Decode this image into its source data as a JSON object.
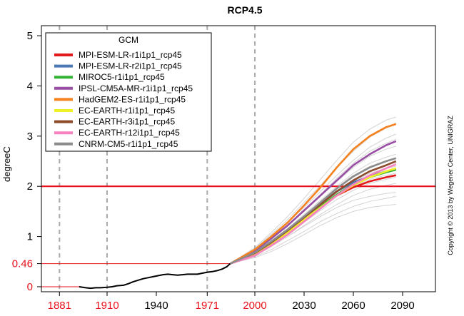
{
  "chart_data": {
    "type": "line",
    "title": "RCP4.5",
    "ylabel": "degreeC",
    "xlim": [
      1870,
      2110
    ],
    "ylim": [
      -0.1,
      5.2
    ],
    "x_ticks": [
      {
        "label": "1881",
        "value": 1881,
        "color": "#e8101a"
      },
      {
        "label": "1910",
        "value": 1910,
        "color": "#e8101a"
      },
      {
        "label": "1940",
        "value": 1940,
        "color": "#000000"
      },
      {
        "label": "1971",
        "value": 1971,
        "color": "#e8101a"
      },
      {
        "label": "2000",
        "value": 2000,
        "color": "#e8101a"
      },
      {
        "label": "2030",
        "value": 2030,
        "color": "#000000"
      },
      {
        "label": "2060",
        "value": 2060,
        "color": "#000000"
      },
      {
        "label": "2090",
        "value": 2090,
        "color": "#000000"
      }
    ],
    "y_ticks": [
      {
        "label": "0",
        "value": 0,
        "color": "#e8101a"
      },
      {
        "label": "0.46",
        "value": 0.46,
        "color": "#e8101a"
      },
      {
        "label": "1",
        "value": 1,
        "color": "#000000"
      },
      {
        "label": "2",
        "value": 2,
        "color": "#000000"
      },
      {
        "label": "3",
        "value": 3,
        "color": "#000000"
      },
      {
        "label": "4",
        "value": 4,
        "color": "#000000"
      },
      {
        "label": "5",
        "value": 5,
        "color": "#000000"
      }
    ],
    "vertical_dashed_lines": [
      1881,
      1910,
      1971,
      2000
    ],
    "horizontal_lines": [
      {
        "value": 0,
        "color": "#e8101a",
        "width": 1,
        "from": 1870,
        "to": 1895
      },
      {
        "value": 0.46,
        "color": "#e8101a",
        "width": 1,
        "from": 1870,
        "to": 1985
      },
      {
        "value": 2,
        "color": "#e8101a",
        "width": 2.2,
        "from": 1870,
        "to": 2110
      }
    ],
    "observed": {
      "color": "#000000",
      "x": [
        1893,
        1897,
        1900,
        1903,
        1906,
        1910,
        1913,
        1916,
        1920,
        1923,
        1926,
        1929,
        1932,
        1935,
        1938,
        1941,
        1944,
        1947,
        1950,
        1953,
        1956,
        1959,
        1962,
        1965,
        1968,
        1971,
        1974,
        1977,
        1980,
        1983,
        1985
      ],
      "values": [
        0.0,
        -0.02,
        -0.03,
        -0.02,
        -0.02,
        -0.01,
        0.0,
        0.02,
        0.03,
        0.06,
        0.1,
        0.13,
        0.16,
        0.18,
        0.2,
        0.22,
        0.24,
        0.25,
        0.24,
        0.23,
        0.24,
        0.25,
        0.25,
        0.25,
        0.27,
        0.29,
        0.3,
        0.32,
        0.35,
        0.4,
        0.46
      ]
    },
    "legend": {
      "title": "GCM",
      "placement": "top-left"
    },
    "series": [
      {
        "name": "MPI-ESM-LR-r1i1p1_rcp45",
        "color": "#e31a1c",
        "x": [
          1985,
          2000,
          2010,
          2020,
          2030,
          2040,
          2050,
          2060,
          2070,
          2080,
          2086
        ],
        "values": [
          0.46,
          0.66,
          0.86,
          1.08,
          1.35,
          1.6,
          1.82,
          1.98,
          2.1,
          2.18,
          2.22
        ]
      },
      {
        "name": "MPI-ESM-LR-r2i1p1_rcp45",
        "color": "#4a78b3",
        "x": [
          1985,
          2000,
          2010,
          2020,
          2030,
          2040,
          2050,
          2060,
          2070,
          2080,
          2086
        ],
        "values": [
          0.46,
          0.68,
          0.9,
          1.12,
          1.4,
          1.65,
          1.9,
          2.08,
          2.2,
          2.3,
          2.35
        ]
      },
      {
        "name": "MIROC5-r1i1p1_rcp45",
        "color": "#33b333",
        "x": [
          1985,
          2000,
          2010,
          2020,
          2030,
          2040,
          2050,
          2060,
          2070,
          2080,
          2086
        ],
        "values": [
          0.46,
          0.67,
          0.88,
          1.1,
          1.36,
          1.6,
          1.84,
          2.04,
          2.18,
          2.28,
          2.33
        ]
      },
      {
        "name": "IPSL-CM5A-MR-r1i1p1_rcp45",
        "color": "#984ea3",
        "x": [
          1985,
          2000,
          2010,
          2020,
          2030,
          2040,
          2050,
          2060,
          2070,
          2080,
          2086
        ],
        "values": [
          0.46,
          0.72,
          0.96,
          1.22,
          1.52,
          1.82,
          2.12,
          2.42,
          2.64,
          2.82,
          2.9
        ]
      },
      {
        "name": "HadGEM2-ES-r1i1p1_rcp45",
        "color": "#f58220",
        "x": [
          1985,
          2000,
          2010,
          2020,
          2030,
          2040,
          2050,
          2060,
          2070,
          2080,
          2086
        ],
        "values": [
          0.46,
          0.74,
          1.0,
          1.28,
          1.62,
          1.98,
          2.38,
          2.74,
          3.0,
          3.18,
          3.24
        ]
      },
      {
        "name": "EC-EARTH-r1i1p1_rcp45",
        "color": "#f0f02a",
        "x": [
          1985,
          2000,
          2010,
          2020,
          2030,
          2040,
          2050,
          2060,
          2070,
          2080,
          2086
        ],
        "values": [
          0.46,
          0.66,
          0.86,
          1.08,
          1.34,
          1.58,
          1.82,
          2.02,
          2.18,
          2.3,
          2.36
        ]
      },
      {
        "name": "EC-EARTH-r3i1p1_rcp45",
        "color": "#8c4b2a",
        "x": [
          1985,
          2000,
          2010,
          2020,
          2030,
          2040,
          2050,
          2060,
          2070,
          2080,
          2086
        ],
        "values": [
          0.46,
          0.67,
          0.88,
          1.12,
          1.38,
          1.64,
          1.9,
          2.12,
          2.3,
          2.42,
          2.5
        ]
      },
      {
        "name": "EC-EARTH-r12i1p1_rcp45",
        "color": "#f781bf",
        "x": [
          1985,
          2000,
          2010,
          2020,
          2030,
          2040,
          2050,
          2060,
          2070,
          2080,
          2086
        ],
        "values": [
          0.46,
          0.62,
          0.82,
          1.04,
          1.3,
          1.56,
          1.82,
          2.04,
          2.22,
          2.36,
          2.44
        ]
      },
      {
        "name": "CNRM-CM5-r1i1p1_rcp45",
        "color": "#8c8c8c",
        "x": [
          1985,
          2000,
          2010,
          2020,
          2030,
          2040,
          2050,
          2060,
          2070,
          2080,
          2086
        ],
        "values": [
          0.46,
          0.68,
          0.9,
          1.14,
          1.4,
          1.68,
          1.96,
          2.2,
          2.38,
          2.5,
          2.56
        ]
      }
    ],
    "ensemble_background": {
      "color": "#d3d3d3",
      "x": [
        1985,
        2000,
        2010,
        2020,
        2030,
        2040,
        2050,
        2060,
        2070,
        2080,
        2086
      ],
      "members": [
        [
          0.46,
          0.58,
          0.7,
          0.86,
          1.04,
          1.22,
          1.38,
          1.5,
          1.58,
          1.62,
          1.64
        ],
        [
          0.46,
          0.6,
          0.74,
          0.92,
          1.1,
          1.3,
          1.46,
          1.6,
          1.7,
          1.76,
          1.8
        ],
        [
          0.46,
          0.62,
          0.8,
          1.0,
          1.22,
          1.44,
          1.64,
          1.82,
          1.94,
          2.02,
          2.06
        ],
        [
          0.46,
          0.64,
          0.84,
          1.04,
          1.28,
          1.52,
          1.74,
          1.92,
          2.06,
          2.14,
          2.18
        ],
        [
          0.46,
          0.66,
          0.88,
          1.1,
          1.36,
          1.62,
          1.88,
          2.1,
          2.26,
          2.36,
          2.4
        ],
        [
          0.46,
          0.7,
          0.92,
          1.16,
          1.44,
          1.72,
          2.0,
          2.26,
          2.46,
          2.58,
          2.64
        ],
        [
          0.46,
          0.72,
          0.96,
          1.22,
          1.5,
          1.8,
          2.1,
          2.38,
          2.6,
          2.74,
          2.8
        ],
        [
          0.46,
          0.74,
          1.0,
          1.28,
          1.58,
          1.9,
          2.22,
          2.52,
          2.78,
          2.96,
          3.04
        ],
        [
          0.46,
          0.76,
          1.04,
          1.34,
          1.68,
          2.02,
          2.38,
          2.7,
          2.98,
          3.16,
          3.26
        ],
        [
          0.46,
          0.78,
          1.08,
          1.4,
          1.76,
          2.14,
          2.52,
          2.88,
          3.14,
          3.32,
          3.38
        ],
        [
          0.46,
          0.63,
          0.82,
          1.0,
          1.2,
          1.4,
          1.58,
          1.72,
          1.8,
          1.86,
          1.88
        ],
        [
          0.46,
          0.69,
          0.9,
          1.14,
          1.4,
          1.66,
          1.94,
          2.18,
          2.36,
          2.5,
          2.56
        ],
        [
          0.46,
          0.65,
          0.86,
          1.08,
          1.32,
          1.56,
          1.8,
          2.0,
          2.14,
          2.22,
          2.26
        ],
        [
          0.46,
          0.73,
          0.98,
          1.24,
          1.52,
          1.84,
          2.16,
          2.46,
          2.7,
          2.86,
          2.94
        ]
      ]
    }
  },
  "copyright": "Copyright © 2013 by Wegener Center, UNIGRAZ"
}
